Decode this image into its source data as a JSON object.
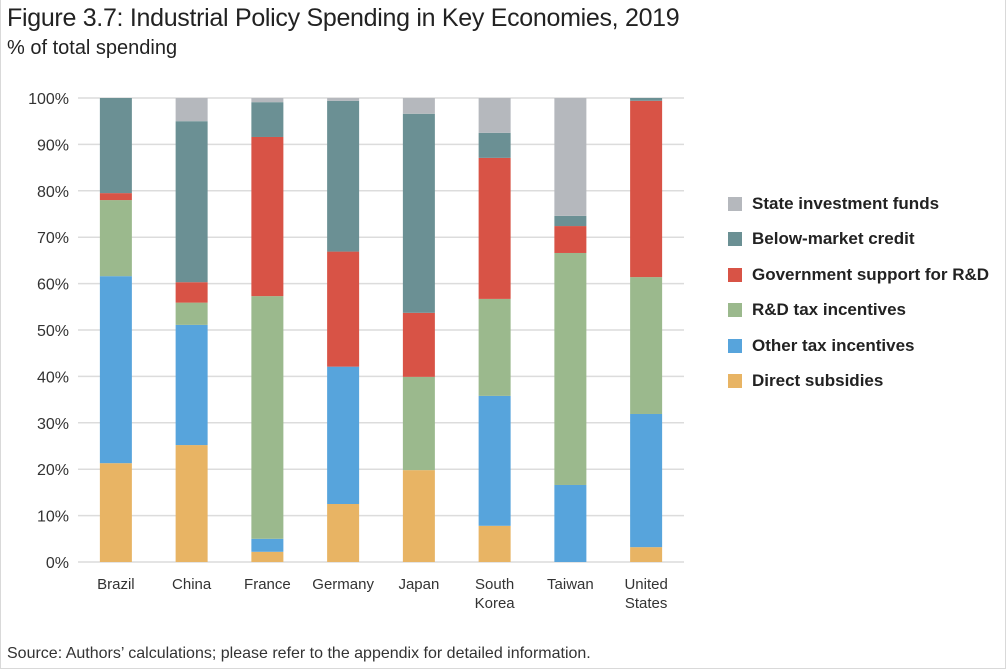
{
  "title": "Figure 3.7: Industrial Policy Spending in Key Economies, 2019",
  "subtitle": "% of total spending",
  "source": "Source: Authors’ calculations; please refer to the appendix for detailed information.",
  "chart_data": {
    "type": "bar",
    "stacked": true,
    "title": "Figure 3.7: Industrial Policy Spending in Key Economies, 2019",
    "ylabel": "% of total spending",
    "xlabel": "",
    "ylim": [
      0,
      100
    ],
    "yticks": [
      0,
      10,
      20,
      30,
      40,
      50,
      60,
      70,
      80,
      90,
      100
    ],
    "ytick_labels": [
      "0%",
      "10%",
      "20%",
      "30%",
      "40%",
      "50%",
      "60%",
      "70%",
      "80%",
      "90%",
      "100%"
    ],
    "grid": "horizontal",
    "legend_position": "right",
    "categories": [
      "Brazil",
      "China",
      "France",
      "Germany",
      "Japan",
      "South Korea",
      "Taiwan",
      "United States"
    ],
    "category_label_lines": [
      [
        "Brazil"
      ],
      [
        "China"
      ],
      [
        "France"
      ],
      [
        "Germany"
      ],
      [
        "Japan"
      ],
      [
        "South",
        "Korea"
      ],
      [
        "Taiwan"
      ],
      [
        "United",
        "States"
      ]
    ],
    "series": [
      {
        "name": "Direct subsidies",
        "color": "#e8b464",
        "values": [
          21.3,
          25.2,
          2.2,
          12.5,
          19.8,
          7.8,
          0.0,
          3.2
        ]
      },
      {
        "name": "Other tax incentives",
        "color": "#57a4dc",
        "values": [
          40.3,
          25.9,
          2.8,
          29.6,
          0.0,
          28.0,
          16.6,
          28.7
        ]
      },
      {
        "name": "R&D tax incentives",
        "color": "#9bb98d",
        "values": [
          16.4,
          4.8,
          52.3,
          0.0,
          20.1,
          20.9,
          50.0,
          29.5
        ]
      },
      {
        "name": "Government support for R&D",
        "color": "#d85346",
        "values": [
          1.5,
          4.4,
          34.3,
          24.8,
          13.8,
          30.4,
          5.8,
          38.0
        ]
      },
      {
        "name": "Below-market credit",
        "color": "#6b9094",
        "values": [
          20.5,
          34.7,
          7.5,
          32.5,
          42.9,
          5.4,
          2.2,
          0.6
        ]
      },
      {
        "name": "State investment funds",
        "color": "#b5b8bd",
        "values": [
          0.0,
          5.0,
          0.9,
          0.6,
          3.4,
          7.5,
          25.4,
          0.0
        ]
      }
    ],
    "legend_order": [
      "State investment funds",
      "Below-market credit",
      "Government support for R&D",
      "R&D tax incentives",
      "Other tax incentives",
      "Direct subsidies"
    ]
  }
}
